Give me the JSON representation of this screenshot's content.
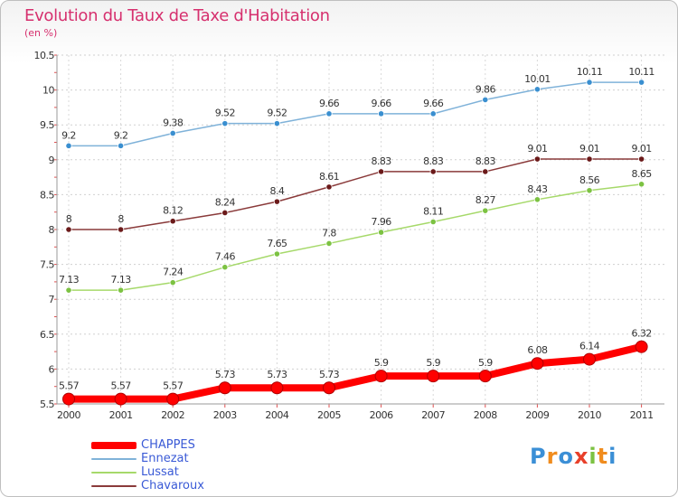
{
  "header": {
    "title": "Evolution du Taux de Taxe d'Habitation",
    "subtitle": "(en %)"
  },
  "branding": {
    "logo_text": "Proxiti",
    "logo_colors": [
      "#3b8fd6",
      "#f08c1e",
      "#3b8fd6",
      "#e8402a",
      "#7cc242",
      "#f08c1e",
      "#3b8fd6"
    ]
  },
  "chart_data": {
    "type": "line",
    "title": "Evolution du Taux de Taxe d'Habitation",
    "subtitle": "(en %)",
    "xlabel": "",
    "ylabel": "",
    "x": [
      "2000",
      "2001",
      "2002",
      "2003",
      "2004",
      "2005",
      "2006",
      "2007",
      "2008",
      "2009",
      "2010",
      "2011"
    ],
    "ylim": [
      5.5,
      10.5
    ],
    "yticks": [
      "5.5",
      "6",
      "6.5",
      "7",
      "7.5",
      "8",
      "8.5",
      "9",
      "9.5",
      "10",
      "10.5"
    ],
    "grid": true,
    "legend_position": "bottom-left",
    "series": [
      {
        "name": "CHAPPES",
        "color": "#ff0000",
        "marker_color": "#e00000",
        "emphasized": true,
        "values": [
          5.57,
          5.57,
          5.57,
          5.73,
          5.73,
          5.73,
          5.9,
          5.9,
          5.9,
          6.08,
          6.14,
          6.32
        ],
        "labels": [
          "5.57",
          "5.57",
          "5.57",
          "5.73",
          "5.73",
          "5.73",
          "5.9",
          "5.9",
          "5.9",
          "6.08",
          "6.14",
          "6.32"
        ]
      },
      {
        "name": "Ennezat",
        "color": "#7fb2d9",
        "marker_color": "#3a8fd0",
        "emphasized": false,
        "values": [
          9.2,
          9.2,
          9.38,
          9.52,
          9.52,
          9.66,
          9.66,
          9.66,
          9.86,
          10.01,
          10.11,
          10.11
        ],
        "labels": [
          "9.2",
          "9.2",
          "9.38",
          "9.52",
          "9.52",
          "9.66",
          "9.66",
          "9.66",
          "9.86",
          "10.01",
          "10.11",
          "10.11"
        ]
      },
      {
        "name": "Lussat",
        "color": "#a6d96a",
        "marker_color": "#7cc242",
        "emphasized": false,
        "values": [
          7.13,
          7.13,
          7.24,
          7.46,
          7.65,
          7.8,
          7.96,
          8.11,
          8.27,
          8.43,
          8.56,
          8.65
        ],
        "labels": [
          "7.13",
          "7.13",
          "7.24",
          "7.46",
          "7.65",
          "7.8",
          "7.96",
          "8.11",
          "8.27",
          "8.43",
          "8.56",
          "8.65"
        ]
      },
      {
        "name": "Chavaroux",
        "color": "#8a3a3a",
        "marker_color": "#6b1a1a",
        "emphasized": false,
        "values": [
          8,
          8,
          8.12,
          8.24,
          8.4,
          8.61,
          8.83,
          8.83,
          8.83,
          9.01,
          9.01,
          9.01
        ],
        "labels": [
          "8",
          "8",
          "8.12",
          "8.24",
          "8.4",
          "8.61",
          "8.83",
          "8.83",
          "8.83",
          "9.01",
          "9.01",
          "9.01"
        ]
      }
    ]
  }
}
